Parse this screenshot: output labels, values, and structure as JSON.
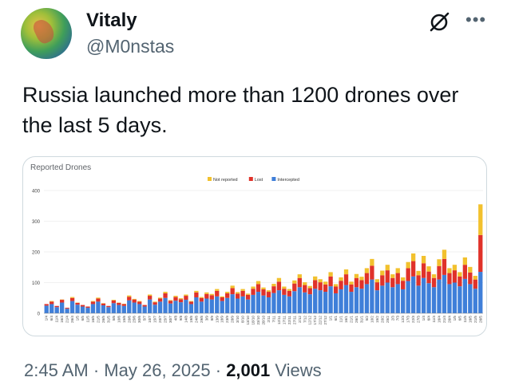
{
  "author": {
    "display_name": "Vitaly",
    "handle": "@M0nstas"
  },
  "icons": {
    "grok": "grok-icon",
    "more": "more-icon"
  },
  "tweet": {
    "text": "Russia launched more than 1200 drones over the last 5 days."
  },
  "meta": {
    "time": "2:45 AM",
    "date": "May 26, 2025",
    "sep": "·",
    "views_count": "2,001",
    "views_label": "Views"
  },
  "colors": {
    "not_reported": "#f2c12e",
    "lost": "#e0322a",
    "intercepted": "#3f7fd9",
    "muted": "#536471"
  },
  "chart_data": {
    "type": "bar",
    "stacked": true,
    "title": "Reported Drones",
    "ylim": [
      0,
      400
    ],
    "yticks": [
      0,
      100,
      200,
      300,
      400
    ],
    "legend_position": "top-center",
    "series": [
      {
        "name": "Not reported",
        "color": "#f2c12e"
      },
      {
        "name": "Lost",
        "color": "#e0322a"
      },
      {
        "name": "Intercepted",
        "color": "#3f7fd9"
      }
    ],
    "x_tick_labels": [
      "1/4",
      "6/4",
      "11/4",
      "16/4",
      "21/4",
      "26/4",
      "1/5",
      "6/5",
      "11/5",
      "16/5",
      "21/5",
      "26/5",
      "31/5",
      "5/6",
      "10/6",
      "15/6",
      "20/6",
      "25/6",
      "30/6",
      "5/7",
      "10/7",
      "15/7",
      "20/7",
      "25/7",
      "30/7",
      "4/8",
      "9/8",
      "14/8",
      "19/8",
      "24/8",
      "29/8",
      "3/9",
      "8/9",
      "13/9",
      "18/9",
      "23/9",
      "28/9",
      "3/10",
      "8/10",
      "13/10",
      "18/10",
      "23/10",
      "28/10",
      "2/11",
      "7/11",
      "12/11",
      "17/11",
      "22/11",
      "27/11",
      "2/12",
      "7/12",
      "12/12",
      "17/12",
      "22/12",
      "27/12",
      "1/1",
      "6/1",
      "11/1",
      "16/1",
      "21/1",
      "26/1",
      "31/1",
      "5/2",
      "10/2",
      "15/2",
      "20/2",
      "25/2",
      "2/3",
      "7/3",
      "12/3",
      "17/3",
      "22/3",
      "27/3",
      "1/4",
      "6/4",
      "11/4",
      "16/4",
      "21/4",
      "26/4",
      "1/5",
      "6/5",
      "11/5",
      "16/5",
      "21/5",
      "26/5"
    ],
    "intercepted": [
      25,
      30,
      20,
      35,
      15,
      40,
      28,
      22,
      18,
      30,
      38,
      26,
      20,
      33,
      27,
      24,
      42,
      35,
      30,
      22,
      45,
      28,
      38,
      50,
      32,
      41,
      36,
      44,
      30,
      52,
      38,
      48,
      45,
      55,
      40,
      50,
      62,
      48,
      55,
      45,
      60,
      70,
      58,
      52,
      66,
      75,
      60,
      55,
      72,
      85,
      68,
      62,
      80,
      75,
      70,
      88,
      65,
      78,
      92,
      70,
      85,
      80,
      95,
      110,
      75,
      90,
      100,
      85,
      95,
      78,
      105,
      120,
      90,
      115,
      98,
      85,
      110,
      125,
      95,
      100,
      88,
      112,
      95,
      80,
      135
    ],
    "lost": [
      5,
      8,
      4,
      9,
      3,
      10,
      6,
      5,
      4,
      8,
      10,
      6,
      4,
      9,
      7,
      6,
      12,
      10,
      8,
      5,
      12,
      8,
      10,
      15,
      9,
      12,
      10,
      13,
      8,
      16,
      12,
      15,
      14,
      18,
      12,
      15,
      20,
      16,
      18,
      15,
      20,
      25,
      20,
      18,
      22,
      28,
      20,
      18,
      25,
      30,
      24,
      20,
      28,
      26,
      24,
      32,
      22,
      28,
      35,
      24,
      30,
      28,
      36,
      45,
      26,
      34,
      40,
      30,
      36,
      28,
      42,
      50,
      34,
      48,
      38,
      30,
      44,
      52,
      36,
      40,
      32,
      46,
      38,
      30,
      120
    ],
    "not_reported": [
      0,
      2,
      0,
      1,
      0,
      3,
      1,
      0,
      0,
      2,
      3,
      1,
      0,
      2,
      1,
      1,
      4,
      2,
      2,
      0,
      4,
      2,
      3,
      5,
      2,
      4,
      3,
      4,
      2,
      5,
      3,
      5,
      4,
      6,
      3,
      5,
      8,
      5,
      6,
      4,
      7,
      10,
      6,
      5,
      8,
      12,
      7,
      6,
      10,
      12,
      9,
      7,
      12,
      10,
      9,
      14,
      8,
      11,
      16,
      9,
      13,
      11,
      16,
      22,
      10,
      15,
      18,
      12,
      16,
      11,
      20,
      25,
      14,
      24,
      17,
      12,
      22,
      30,
      16,
      18,
      14,
      24,
      18,
      12,
      100
    ]
  }
}
